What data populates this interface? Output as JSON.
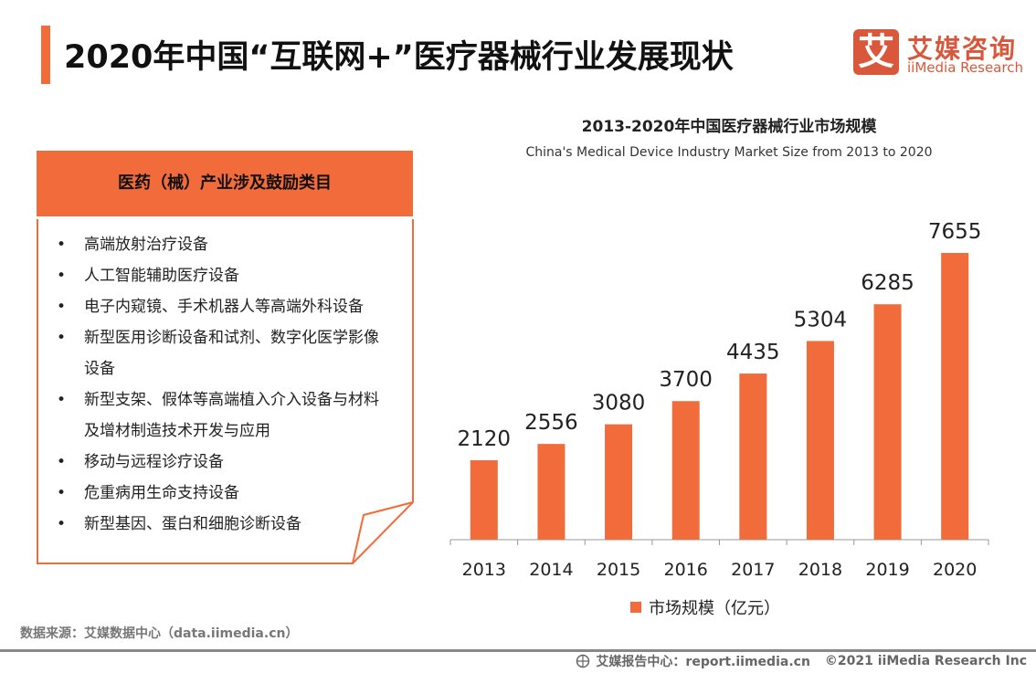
{
  "header": {
    "title": "2020年中国“互联网+”医疗器械行业发展现状",
    "logo_icon": "艾",
    "logo_cn": "艾媒咨询",
    "logo_en": "iiMedia Research"
  },
  "panel": {
    "heading": "医药（械）产业涉及鼓励类目",
    "bullet": "•",
    "items": [
      "高端放射治疗设备",
      "人工智能辅助医疗设备",
      "电子内窥镜、手术机器人等高端外科设备",
      "新型医用诊断设备和试剂、数字化医学影像设备",
      "新型支架、假体等高端植入介入设备与材料及增材制造技术开发与应用",
      "移动与远程诊疗设备",
      "危重病用生命支持设备",
      "新型基因、蛋白和细胞诊断设备"
    ]
  },
  "chart_data": {
    "type": "bar",
    "title": "2013-2020年中国医疗器械行业市场规模",
    "subtitle": "China's Medical Device Industry Market Size from 2013 to 2020",
    "categories": [
      "2013",
      "2014",
      "2015",
      "2016",
      "2017",
      "2018",
      "2019",
      "2020"
    ],
    "series": [
      {
        "name": "市场规模（亿元）",
        "values": [
          2120,
          2556,
          3080,
          3700,
          4435,
          5304,
          6285,
          7655
        ]
      }
    ],
    "color": "#f26b3a",
    "ylim": [
      0,
      7655
    ],
    "grid": false,
    "legend": "bottom",
    "data_labels": true
  },
  "footer": {
    "source": "数据来源：艾媒数据中心（data.iimedia.cn）",
    "report": "艾媒报告中心：report.iimedia.cn",
    "copyright": "©2021  iiMedia Research  Inc",
    "globe_icon": "globe-icon"
  }
}
